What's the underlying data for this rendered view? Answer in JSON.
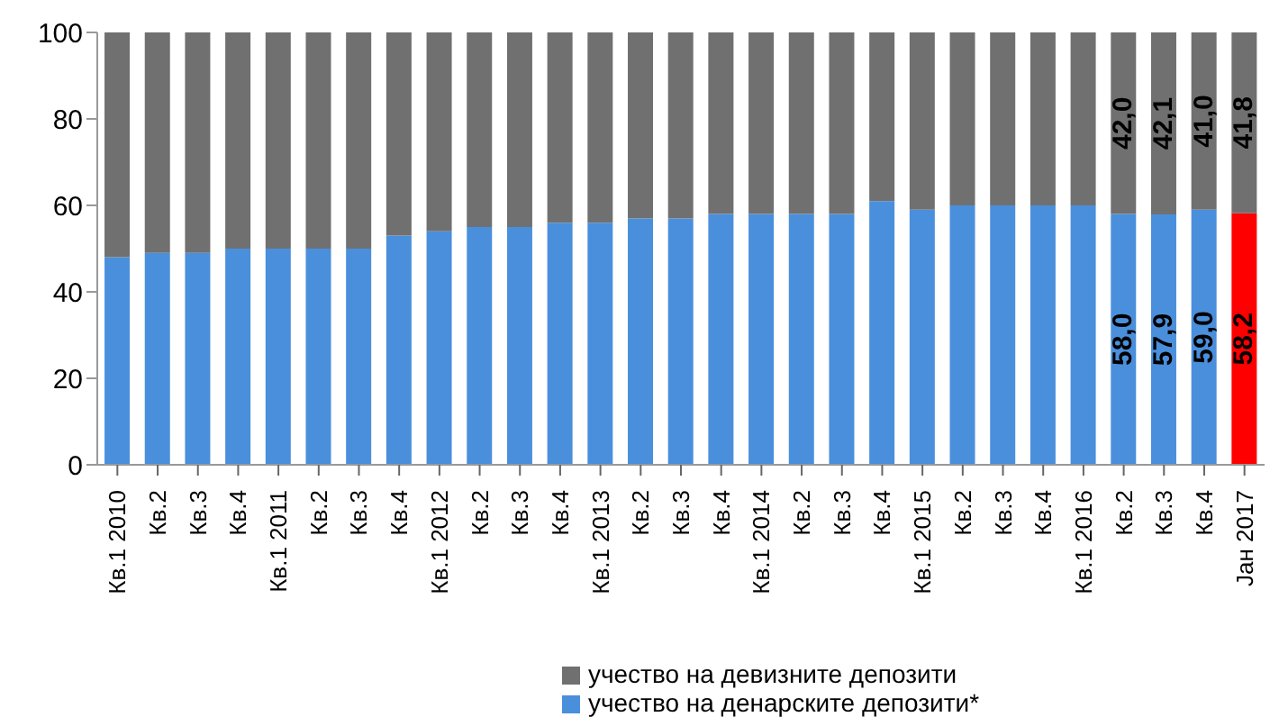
{
  "chart_data": {
    "type": "bar",
    "stacked": true,
    "categories": [
      "Кв.1 2010",
      "Кв.2",
      "Кв.3",
      "Кв.4",
      "Кв.1 2011",
      "Кв.2",
      "Кв.3",
      "Кв.4",
      "Кв.1 2012",
      "Кв.2",
      "Кв.3",
      "Кв.4",
      "Кв.1 2013",
      "Кв.2",
      "Кв.3",
      "Кв.4",
      "Кв.1 2014",
      "Кв.2",
      "Кв.3",
      "Кв.4",
      "Кв.1 2015",
      "Кв.2",
      "Кв.3",
      "Кв.4",
      "Кв.1 2016",
      "Кв.2",
      "Кв.3",
      "Кв.4",
      "Јан 2017"
    ],
    "series": [
      {
        "name": "учество на денарските депозити*",
        "color": "#4a8fdc",
        "colors": [
          "#4a8fdc",
          "#4a8fdc",
          "#4a8fdc",
          "#4a8fdc",
          "#4a8fdc",
          "#4a8fdc",
          "#4a8fdc",
          "#4a8fdc",
          "#4a8fdc",
          "#4a8fdc",
          "#4a8fdc",
          "#4a8fdc",
          "#4a8fdc",
          "#4a8fdc",
          "#4a8fdc",
          "#4a8fdc",
          "#4a8fdc",
          "#4a8fdc",
          "#4a8fdc",
          "#4a8fdc",
          "#4a8fdc",
          "#4a8fdc",
          "#4a8fdc",
          "#4a8fdc",
          "#4a8fdc",
          "#4a8fdc",
          "#4a8fdc",
          "#4a8fdc",
          "#ff0000"
        ],
        "values": [
          48,
          49,
          49,
          50,
          50,
          50,
          50,
          53,
          54,
          55,
          55,
          56,
          56,
          57,
          57,
          58,
          58,
          58,
          58,
          61,
          59,
          60,
          60,
          60,
          60,
          58.0,
          57.9,
          59.0,
          58.2
        ],
        "value_labels": [
          null,
          null,
          null,
          null,
          null,
          null,
          null,
          null,
          null,
          null,
          null,
          null,
          null,
          null,
          null,
          null,
          null,
          null,
          null,
          null,
          null,
          null,
          null,
          null,
          null,
          "58,0",
          "57,9",
          "59,0",
          "58,2"
        ]
      },
      {
        "name": "учество на девизните депозити",
        "color": "#707070",
        "values": [
          52,
          51,
          51,
          50,
          50,
          50,
          50,
          47,
          46,
          45,
          45,
          44,
          44,
          43,
          43,
          42,
          42,
          42,
          42,
          39,
          41,
          40,
          40,
          40,
          40,
          42.0,
          42.1,
          41.0,
          41.8
        ],
        "value_labels": [
          null,
          null,
          null,
          null,
          null,
          null,
          null,
          null,
          null,
          null,
          null,
          null,
          null,
          null,
          null,
          null,
          null,
          null,
          null,
          null,
          null,
          null,
          null,
          null,
          null,
          "42,0",
          "42,1",
          "41,0",
          "41,8"
        ]
      }
    ],
    "ylim": [
      0,
      100
    ],
    "yticks": [
      0,
      20,
      40,
      60,
      80,
      100
    ],
    "grid": false,
    "legend": "bottom"
  }
}
